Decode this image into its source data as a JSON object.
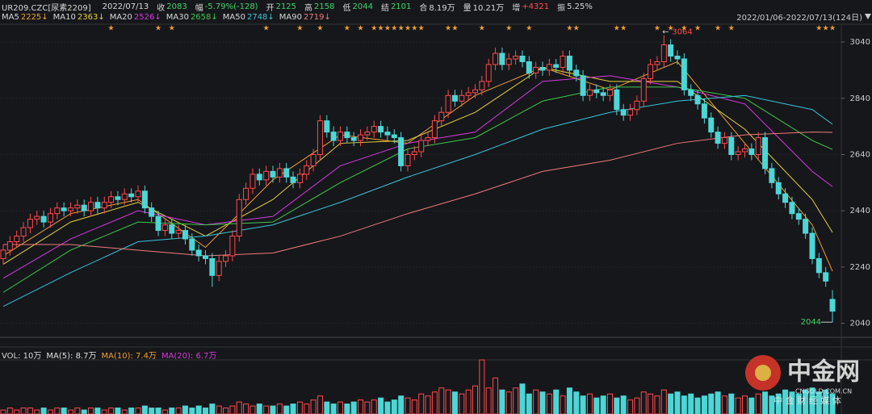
{
  "header": {
    "symbol": "UR209.CZC[尿素2209]",
    "date": "2022/07/13",
    "fields": [
      {
        "label": "收",
        "value": "2083",
        "color": "#3fd36b"
      },
      {
        "label": "幅",
        "value": "-5.79%(-128)",
        "color": "#3fd36b"
      },
      {
        "label": "开",
        "value": "2125",
        "color": "#3fd36b"
      },
      {
        "label": "高",
        "value": "2158",
        "color": "#3fd36b"
      },
      {
        "label": "低",
        "value": "2044",
        "color": "#3fd36b"
      },
      {
        "label": "结",
        "value": "2101",
        "color": "#3fd36b"
      },
      {
        "label": "合",
        "value": "8.19万",
        "color": "#d8d8d8"
      },
      {
        "label": "量",
        "value": "10.21万",
        "color": "#d8d8d8"
      },
      {
        "label": "增",
        "value": "+4321",
        "color": "#ff4a4a"
      },
      {
        "label": "振",
        "value": "5.25%",
        "color": "#d8d8d8"
      }
    ]
  },
  "range": "2022/01/06-2022/07/13(124日)",
  "watermark": {
    "brand": "中金网",
    "site": "CNGOLD.COM.CN",
    "slogan": "中 金 财 经 媒 体"
  },
  "chart_data": {
    "type": "candlestick",
    "up_color": "#ff4a4a",
    "down_color": "#4dd6d6",
    "ylim": [
      1990,
      3069
    ],
    "yticks": [
      2040,
      2240,
      2440,
      2640,
      2840,
      3040
    ],
    "open": [
      2270,
      2300,
      2330,
      2350,
      2380,
      2410,
      2420,
      2400,
      2430,
      2450,
      2440,
      2450,
      2460,
      2440,
      2470,
      2450,
      2470,
      2490,
      2480,
      2500,
      2490,
      2510,
      2450,
      2420,
      2370,
      2390,
      2360,
      2370,
      2340,
      2300,
      2280,
      2270,
      2210,
      2260,
      2280,
      2350,
      2480,
      2520,
      2570,
      2550,
      2580,
      2560,
      2590,
      2560,
      2540,
      2570,
      2600,
      2640,
      2760,
      2720,
      2690,
      2720,
      2700,
      2690,
      2710,
      2720,
      2740,
      2720,
      2710,
      2700,
      2600,
      2640,
      2650,
      2690,
      2700,
      2760,
      2790,
      2850,
      2830,
      2850,
      2860,
      2870,
      2900,
      2960,
      3000,
      2960,
      2980,
      2990,
      2970,
      2930,
      2950,
      2940,
      2960,
      2950,
      2990,
      2940,
      2920,
      2850,
      2870,
      2860,
      2850,
      2870,
      2800,
      2780,
      2800,
      2830,
      2910,
      2960,
      2970,
      3030,
      2990,
      2980,
      2870,
      2850,
      2820,
      2770,
      2720,
      2680,
      2700,
      2640,
      2650,
      2660,
      2640,
      2700,
      2590,
      2540,
      2500,
      2470,
      2430,
      2410,
      2360,
      2270,
      2220,
      2125
    ],
    "high": [
      2320,
      2350,
      2370,
      2400,
      2430,
      2440,
      2440,
      2450,
      2470,
      2470,
      2470,
      2480,
      2480,
      2490,
      2490,
      2490,
      2510,
      2510,
      2520,
      2520,
      2530,
      2530,
      2470,
      2440,
      2410,
      2410,
      2390,
      2390,
      2360,
      2320,
      2300,
      2290,
      2280,
      2300,
      2370,
      2500,
      2540,
      2590,
      2590,
      2600,
      2600,
      2610,
      2610,
      2580,
      2590,
      2620,
      2660,
      2780,
      2780,
      2740,
      2740,
      2740,
      2720,
      2730,
      2740,
      2760,
      2760,
      2740,
      2730,
      2720,
      2660,
      2670,
      2710,
      2720,
      2780,
      2810,
      2870,
      2870,
      2870,
      2880,
      2890,
      2920,
      2980,
      3020,
      3020,
      3000,
      3010,
      3010,
      2990,
      2970,
      2970,
      2980,
      2980,
      3010,
      3010,
      2960,
      2940,
      2890,
      2890,
      2880,
      2890,
      2890,
      2820,
      2820,
      2850,
      2930,
      2980,
      2990,
      3064,
      3050,
      3010,
      3000,
      2890,
      2870,
      2840,
      2790,
      2740,
      2720,
      2720,
      2670,
      2680,
      2680,
      2720,
      2720,
      2610,
      2560,
      2520,
      2490,
      2450,
      2430,
      2380,
      2290,
      2240,
      2158
    ],
    "low": [
      2250,
      2280,
      2310,
      2330,
      2360,
      2390,
      2380,
      2380,
      2410,
      2420,
      2420,
      2430,
      2420,
      2420,
      2430,
      2430,
      2450,
      2460,
      2460,
      2470,
      2470,
      2430,
      2400,
      2350,
      2350,
      2340,
      2340,
      2320,
      2280,
      2260,
      2250,
      2170,
      2190,
      2240,
      2260,
      2330,
      2460,
      2500,
      2530,
      2530,
      2540,
      2540,
      2540,
      2520,
      2520,
      2550,
      2580,
      2620,
      2700,
      2670,
      2670,
      2680,
      2670,
      2670,
      2690,
      2700,
      2700,
      2690,
      2680,
      2580,
      2580,
      2620,
      2630,
      2670,
      2680,
      2740,
      2770,
      2810,
      2810,
      2830,
      2840,
      2850,
      2880,
      2940,
      2940,
      2940,
      2960,
      2950,
      2910,
      2910,
      2920,
      2920,
      2930,
      2930,
      2920,
      2900,
      2830,
      2830,
      2840,
      2830,
      2830,
      2780,
      2760,
      2760,
      2780,
      2810,
      2890,
      2940,
      2950,
      2970,
      2960,
      2850,
      2830,
      2800,
      2750,
      2700,
      2660,
      2660,
      2620,
      2620,
      2630,
      2620,
      2620,
      2570,
      2520,
      2480,
      2450,
      2410,
      2390,
      2340,
      2250,
      2200,
      2170,
      2044
    ],
    "close": [
      2300,
      2330,
      2350,
      2380,
      2410,
      2420,
      2400,
      2430,
      2450,
      2440,
      2450,
      2460,
      2440,
      2470,
      2450,
      2470,
      2490,
      2480,
      2500,
      2490,
      2510,
      2450,
      2420,
      2370,
      2390,
      2360,
      2370,
      2340,
      2300,
      2280,
      2270,
      2210,
      2260,
      2280,
      2350,
      2480,
      2520,
      2570,
      2550,
      2580,
      2560,
      2590,
      2560,
      2540,
      2570,
      2600,
      2640,
      2760,
      2720,
      2690,
      2720,
      2700,
      2690,
      2710,
      2720,
      2740,
      2720,
      2710,
      2700,
      2600,
      2640,
      2650,
      2690,
      2700,
      2760,
      2790,
      2850,
      2830,
      2850,
      2860,
      2870,
      2900,
      2960,
      3000,
      2960,
      2980,
      2990,
      2970,
      2930,
      2950,
      2940,
      2960,
      2950,
      2990,
      2940,
      2920,
      2850,
      2870,
      2860,
      2850,
      2870,
      2800,
      2780,
      2800,
      2830,
      2910,
      2960,
      2970,
      3030,
      2990,
      2980,
      2870,
      2850,
      2820,
      2770,
      2720,
      2680,
      2700,
      2640,
      2650,
      2660,
      2640,
      2700,
      2590,
      2540,
      2500,
      2470,
      2430,
      2410,
      2360,
      2270,
      2220,
      2190,
      2083
    ],
    "ma": [
      {
        "name": "MA5",
        "legend_value": "2225↓",
        "color": "#f0a030",
        "x": [
          0,
          10,
          20,
          30,
          40,
          50,
          60,
          70,
          80,
          90,
          100,
          110,
          120,
          123
        ],
        "values": [
          2280,
          2430,
          2480,
          2310,
          2550,
          2710,
          2680,
          2850,
          2950,
          2870,
          2970,
          2680,
          2390,
          2225
        ]
      },
      {
        "name": "MA10",
        "legend_value": "2363↓",
        "color": "#e6d23a",
        "x": [
          0,
          10,
          20,
          30,
          40,
          50,
          60,
          70,
          80,
          90,
          100,
          110,
          120,
          123
        ],
        "values": [
          2250,
          2400,
          2470,
          2350,
          2480,
          2680,
          2690,
          2790,
          2950,
          2900,
          2900,
          2730,
          2480,
          2363
        ]
      },
      {
        "name": "MA20",
        "legend_value": "2526↓",
        "color": "#d63adf",
        "x": [
          0,
          10,
          20,
          30,
          40,
          50,
          60,
          70,
          80,
          90,
          100,
          110,
          120,
          123
        ],
        "values": [
          2200,
          2340,
          2440,
          2390,
          2420,
          2600,
          2680,
          2720,
          2900,
          2920,
          2880,
          2820,
          2580,
          2526
        ]
      },
      {
        "name": "MA30",
        "legend_value": "2658↓",
        "color": "#3cc84a",
        "x": [
          0,
          10,
          20,
          30,
          40,
          50,
          60,
          70,
          80,
          90,
          100,
          110,
          120,
          123
        ],
        "values": [
          2150,
          2300,
          2400,
          2390,
          2400,
          2540,
          2660,
          2700,
          2830,
          2880,
          2880,
          2840,
          2690,
          2658
        ]
      },
      {
        "name": "MA50",
        "legend_value": "2748↓",
        "color": "#38c4d8",
        "x": [
          0,
          10,
          20,
          30,
          40,
          50,
          60,
          70,
          80,
          90,
          100,
          110,
          120,
          123
        ],
        "values": [
          2100,
          2220,
          2330,
          2350,
          2390,
          2470,
          2560,
          2640,
          2730,
          2790,
          2830,
          2850,
          2800,
          2748
        ]
      },
      {
        "name": "MA90",
        "legend_value": "2719↓",
        "color": "#f07a7a",
        "x": [
          0,
          10,
          20,
          30,
          40,
          50,
          60,
          70,
          80,
          90,
          100,
          110,
          120,
          123
        ],
        "values": [
          2320,
          2320,
          2300,
          2280,
          2290,
          2350,
          2430,
          2500,
          2580,
          2620,
          2680,
          2710,
          2720,
          2719
        ]
      }
    ],
    "volume": {
      "title": "VOL: 10万",
      "legend": [
        {
          "label": "MA(5): 8.7万",
          "color": "#e0e0e0"
        },
        {
          "label": "MA(10): 7.4万",
          "color": "#f0a030"
        },
        {
          "label": "MA(20): 6.7万",
          "color": "#d63adf"
        }
      ],
      "ylim": [
        0,
        27
      ],
      "values": [
        2,
        3,
        2,
        3,
        3,
        2,
        3,
        2,
        3,
        3,
        2,
        3,
        2,
        3,
        3,
        2,
        3,
        3,
        2,
        3,
        3,
        4,
        3,
        3,
        2,
        3,
        3,
        4,
        3,
        4,
        3,
        5,
        4,
        3,
        4,
        6,
        5,
        4,
        5,
        4,
        4,
        5,
        4,
        5,
        6,
        5,
        7,
        9,
        6,
        5,
        6,
        5,
        6,
        7,
        6,
        7,
        8,
        6,
        7,
        9,
        8,
        7,
        10,
        9,
        11,
        13,
        12,
        11,
        10,
        12,
        14,
        27,
        13,
        18,
        12,
        11,
        13,
        15,
        10,
        12,
        11,
        10,
        12,
        9,
        13,
        11,
        9,
        10,
        8,
        9,
        10,
        8,
        9,
        7,
        8,
        11,
        10,
        9,
        12,
        10,
        11,
        9,
        10,
        8,
        9,
        10,
        11,
        9,
        10,
        8,
        9,
        8,
        10,
        11,
        9,
        10,
        12,
        11,
        10,
        12,
        13,
        11,
        12,
        10
      ]
    }
  }
}
